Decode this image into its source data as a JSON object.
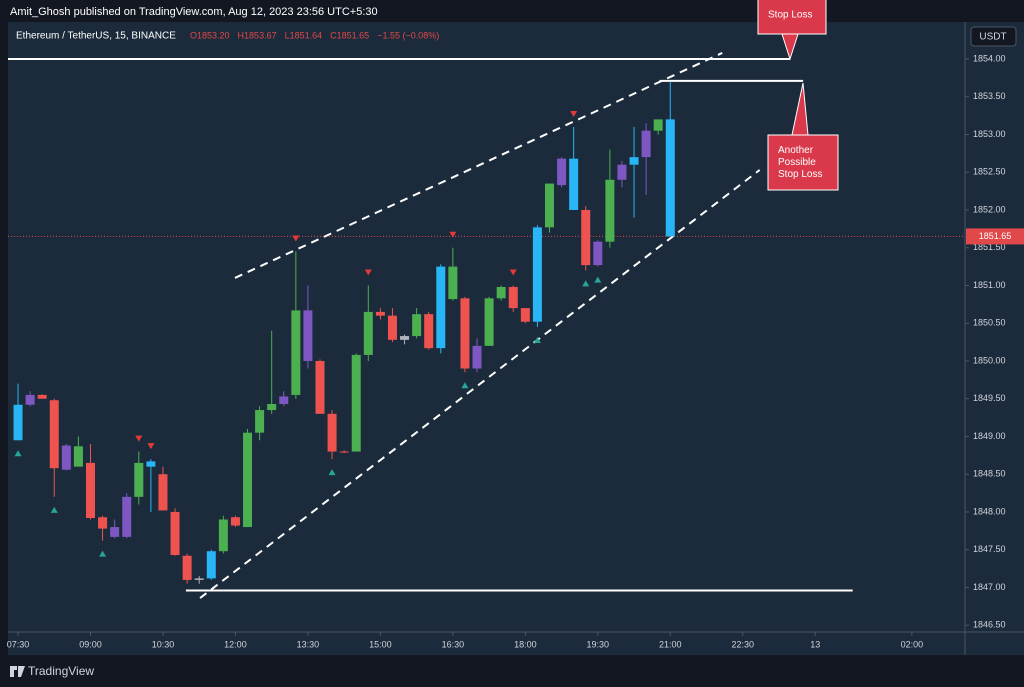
{
  "header": {
    "publisher": "Amit_Ghosh published on TradingView.com, Aug 12, 2023 23:56 UTC+5:30",
    "logo": "TradingView",
    "currency": "USDT"
  },
  "chart_data": {
    "type": "candlestick",
    "title": "Ethereum / TetherUS, 15, BINANCE",
    "ohlc_legend": [
      "O1853.20",
      "H1853.67",
      "L1851.64",
      "C1851.65",
      "−1.55 (−0.08%)"
    ],
    "x": [
      0,
      1,
      2,
      3,
      4,
      5,
      6,
      7,
      8,
      9,
      10,
      11,
      12,
      13,
      14,
      15,
      16,
      17,
      18,
      19,
      20,
      21,
      22,
      23,
      24,
      25,
      26,
      27,
      28,
      29,
      30,
      31,
      32,
      33,
      34,
      35,
      36,
      37,
      38,
      39,
      40,
      41,
      42,
      43,
      44,
      45,
      46,
      47,
      48,
      49,
      50,
      51,
      52,
      53,
      54
    ],
    "open": [
      1848.95,
      1849.55,
      1849.55,
      1849.48,
      1848.88,
      1848.6,
      1848.65,
      1847.93,
      1847.8,
      1847.67,
      1848.2,
      1848.6,
      1848.5,
      1848.0,
      1847.42,
      1847.1,
      1847.12,
      1847.48,
      1847.93,
      1847.8,
      1849.05,
      1849.35,
      1849.43,
      1849.55,
      1850.67,
      1850.0,
      1849.3,
      1848.8,
      1848.8,
      1850.08,
      1850.65,
      1850.6,
      1850.28,
      1850.33,
      1850.62,
      1850.17,
      1851.25,
      1850.83,
      1849.9,
      1850.2,
      1850.83,
      1850.98,
      1850.7,
      1850.52,
      1851.77,
      1852.33,
      1852.68,
      1852.0,
      1851.27,
      1851.58,
      1852.4,
      1852.6,
      1852.7,
      1853.05,
      1853.2
    ],
    "high": [
      1849.7,
      1849.6,
      1849.56,
      1849.5,
      1848.9,
      1849.0,
      1848.9,
      1847.95,
      1847.9,
      1848.25,
      1848.8,
      1848.7,
      1848.6,
      1848.05,
      1847.45,
      1847.15,
      1847.5,
      1847.95,
      1847.95,
      1849.1,
      1849.4,
      1850.4,
      1849.6,
      1851.45,
      1851.0,
      1850.02,
      1849.35,
      1848.82,
      1850.1,
      1851.0,
      1850.7,
      1850.7,
      1850.35,
      1850.7,
      1850.65,
      1851.28,
      1851.5,
      1850.85,
      1850.3,
      1850.85,
      1851.0,
      1851.0,
      1850.7,
      1851.8,
      1852.35,
      1852.7,
      1853.1,
      1852.05,
      1851.6,
      1852.8,
      1852.65,
      1853.1,
      1853.15,
      1853.2,
      1853.7
    ],
    "low": [
      1848.95,
      1849.4,
      1849.5,
      1848.2,
      1848.55,
      1848.6,
      1847.9,
      1847.62,
      1847.65,
      1847.65,
      1848.1,
      1848.0,
      1848.05,
      1847.42,
      1847.05,
      1847.05,
      1847.1,
      1847.45,
      1847.8,
      1847.8,
      1848.95,
      1849.3,
      1849.4,
      1849.5,
      1849.9,
      1849.3,
      1848.7,
      1848.78,
      1848.8,
      1850.0,
      1850.55,
      1850.25,
      1850.22,
      1850.3,
      1850.15,
      1850.1,
      1850.8,
      1849.85,
      1849.85,
      1850.2,
      1850.8,
      1850.65,
      1850.5,
      1850.45,
      1851.7,
      1852.3,
      1852.0,
      1851.2,
      1851.25,
      1851.5,
      1852.3,
      1851.9,
      1852.2,
      1853.0,
      1851.65
    ],
    "close": [
      1849.42,
      1849.42,
      1849.5,
      1848.58,
      1848.56,
      1848.87,
      1847.92,
      1847.78,
      1847.67,
      1848.2,
      1848.65,
      1848.67,
      1848.02,
      1847.43,
      1847.1,
      1847.12,
      1847.48,
      1847.9,
      1847.82,
      1849.05,
      1849.35,
      1849.43,
      1849.53,
      1850.67,
      1850.0,
      1849.3,
      1848.8,
      1848.8,
      1850.08,
      1850.65,
      1850.6,
      1850.28,
      1850.33,
      1850.62,
      1850.17,
      1851.25,
      1850.82,
      1849.9,
      1850.2,
      1850.83,
      1850.98,
      1850.7,
      1850.52,
      1851.77,
      1852.35,
      1852.68,
      1852.0,
      1851.27,
      1851.58,
      1852.4,
      1852.6,
      1852.7,
      1853.05,
      1853.2,
      1851.65
    ],
    "colors": [
      "#29b6f6",
      "#7e57c2",
      "#ef5350",
      "#ef5350",
      "#7e57c2",
      "#4caf50",
      "#ef5350",
      "#ef5350",
      "#7e57c2",
      "#7e57c2",
      "#4caf50",
      "#29b6f6",
      "#ef5350",
      "#ef5350",
      "#ef5350",
      "#b2b5be",
      "#29b6f6",
      "#4caf50",
      "#ef5350",
      "#4caf50",
      "#4caf50",
      "#4caf50",
      "#7e57c2",
      "#4caf50",
      "#7e57c2",
      "#ef5350",
      "#ef5350",
      "#ef5350",
      "#4caf50",
      "#4caf50",
      "#ef5350",
      "#ef5350",
      "#b2b5be",
      "#4caf50",
      "#ef5350",
      "#29b6f6",
      "#4caf50",
      "#ef5350",
      "#7e57c2",
      "#4caf50",
      "#4caf50",
      "#ef5350",
      "#ef5350",
      "#29b6f6",
      "#4caf50",
      "#7e57c2",
      "#29b6f6",
      "#ef5350",
      "#7e57c2",
      "#4caf50",
      "#7e57c2",
      "#29b6f6",
      "#7e57c2",
      "#4caf50",
      "#29b6f6"
    ],
    "up_markers": [
      0,
      3,
      7,
      26,
      37,
      43,
      47,
      48
    ],
    "down_markers": [
      10,
      11,
      23,
      29,
      36,
      41,
      46
    ],
    "up_color": "#26a69a",
    "down_color": "#e53935",
    "lines": [
      {
        "x": [
          17.96,
          58.3
        ],
        "y": [
          1851.1,
          1854.08
        ],
        "dashed": true
      },
      {
        "x": [
          15.07,
          61.4
        ],
        "y": [
          1846.86,
          1852.53
        ],
        "dashed": true
      },
      {
        "x": [
          -0.83,
          63.9
        ],
        "y": [
          1854.0,
          1854.0
        ],
        "dashed": false
      },
      {
        "x": [
          53.1,
          65.0
        ],
        "y": [
          1853.71,
          1853.71
        ],
        "dashed": false
      },
      {
        "x": [
          13.9,
          69.1
        ],
        "y": [
          1846.96,
          1846.96
        ],
        "dashed": false
      }
    ],
    "annotations": [
      [
        "Stop Loss"
      ],
      [
        "Another",
        "Possible",
        "Stop Loss"
      ]
    ],
    "xlim": [
      -0.83,
      78.4
    ],
    "xticks": [
      {
        "value": 0,
        "label": "07:30"
      },
      {
        "value": 6,
        "label": "09:00"
      },
      {
        "value": 12,
        "label": "10:30"
      },
      {
        "value": 18,
        "label": "12:00"
      },
      {
        "value": 24,
        "label": "13:30"
      },
      {
        "value": 30,
        "label": "15:00"
      },
      {
        "value": 36,
        "label": "16:30"
      },
      {
        "value": 42,
        "label": "18:00"
      },
      {
        "value": 48,
        "label": "19:30"
      },
      {
        "value": 54,
        "label": "21:00"
      },
      {
        "value": 60,
        "label": "22:30"
      },
      {
        "value": 66,
        "label": "13"
      },
      {
        "value": 74,
        "label": "02:00"
      }
    ],
    "ylim": [
      1846.41,
      1854.49
    ],
    "yticks": [
      {
        "value": 1846.5,
        "label": "1846.50"
      },
      {
        "value": 1847,
        "label": "1847.00"
      },
      {
        "value": 1847.5,
        "label": "1847.50"
      },
      {
        "value": 1848,
        "label": "1848.00"
      },
      {
        "value": 1848.5,
        "label": "1848.50"
      },
      {
        "value": 1849,
        "label": "1849.00"
      },
      {
        "value": 1849.5,
        "label": "1849.50"
      },
      {
        "value": 1850,
        "label": "1850.00"
      },
      {
        "value": 1850.5,
        "label": "1850.50"
      },
      {
        "value": 1851,
        "label": "1851.00"
      },
      {
        "value": 1851.5,
        "label": "1851.50"
      },
      {
        "value": 1852,
        "label": "1852.00"
      },
      {
        "value": 1852.5,
        "label": "1852.50"
      },
      {
        "value": 1853,
        "label": "1853.00"
      },
      {
        "value": 1853.5,
        "label": "1853.50"
      },
      {
        "value": 1854,
        "label": "1854.00"
      }
    ],
    "grid": false
  }
}
